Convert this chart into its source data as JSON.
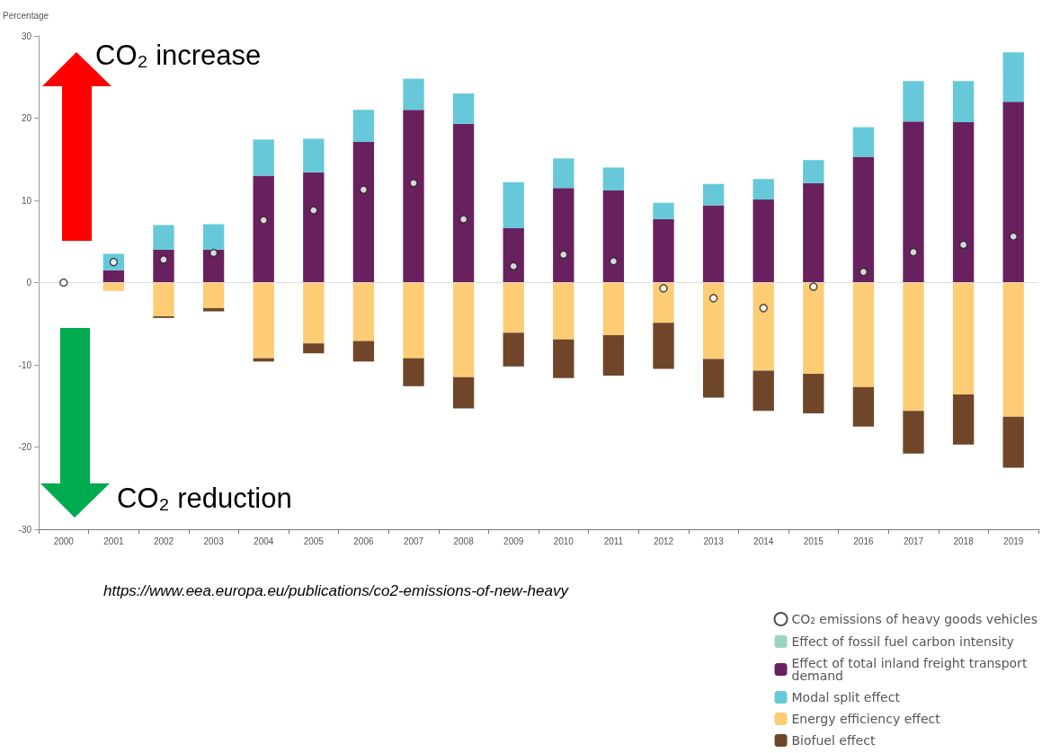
{
  "chart_data": {
    "type": "bar",
    "stacked": true,
    "ylabel": "Percentage",
    "categories": [
      "2000",
      "2001",
      "2002",
      "2003",
      "2004",
      "2005",
      "2006",
      "2007",
      "2008",
      "2009",
      "2010",
      "2011",
      "2012",
      "2013",
      "2014",
      "2015",
      "2016",
      "2017",
      "2018",
      "2019"
    ],
    "series": [
      {
        "name": "CO₂ emissions of heavy goods vehicles",
        "type": "scatter",
        "color": "#ffffff",
        "values": [
          0,
          2.5,
          2.8,
          3.6,
          7.6,
          8.8,
          11.3,
          12.1,
          7.7,
          2.0,
          3.4,
          2.6,
          -0.7,
          -1.9,
          -3.1,
          -0.5,
          1.3,
          3.7,
          4.6,
          5.6
        ]
      },
      {
        "name": "Effect of fossil fuel carbon intensity",
        "color": "#99d4c0",
        "values": [
          0,
          0,
          0,
          0,
          0,
          0,
          0,
          0,
          0,
          0,
          0,
          0,
          0,
          0,
          0,
          0,
          0,
          0,
          0,
          0
        ]
      },
      {
        "name": "Effect of total inland freight transport demand",
        "color": "#68215e",
        "values": [
          0,
          1.5,
          4.0,
          4.0,
          13.0,
          13.4,
          17.1,
          21.0,
          19.3,
          6.6,
          11.5,
          11.2,
          7.7,
          9.4,
          10.1,
          12.1,
          15.3,
          19.6,
          19.5,
          22.0
        ]
      },
      {
        "name": "Modal split effect",
        "color": "#66c8d8",
        "values": [
          0,
          2.0,
          3.0,
          3.1,
          4.4,
          4.1,
          3.9,
          3.8,
          3.7,
          5.6,
          3.6,
          2.8,
          2.0,
          2.6,
          2.5,
          2.8,
          3.6,
          4.9,
          5.0,
          6.0
        ]
      },
      {
        "name": "Energy efficiency effect",
        "color": "#fdcc75",
        "values": [
          0,
          -1.0,
          -4.1,
          -3.1,
          -9.2,
          -7.4,
          -7.1,
          -9.2,
          -11.5,
          -6.1,
          -6.9,
          -6.4,
          -4.9,
          -9.3,
          -10.7,
          -11.1,
          -12.7,
          -15.6,
          -13.6,
          -16.3
        ]
      },
      {
        "name": "Biofuel effect",
        "color": "#6f4629",
        "values": [
          0,
          0,
          -0.2,
          -0.4,
          -0.4,
          -1.2,
          -2.5,
          -3.4,
          -3.8,
          -4.1,
          -4.7,
          -4.9,
          -5.6,
          -4.7,
          -4.9,
          -4.8,
          -4.8,
          -5.2,
          -6.1,
          -6.2
        ]
      }
    ],
    "ylim": [
      -30,
      30
    ],
    "yticks": [
      -30,
      -20,
      -10,
      0,
      10,
      20,
      30
    ],
    "grid": false,
    "legend": "bottom right",
    "marker": "circle",
    "ref_lines": [
      {
        "axis": "y",
        "value": 0,
        "color": "#dddddd"
      }
    ],
    "annotations": [
      "CO₂ increase",
      "CO₂ reduction",
      "https://www.eea.europa.eu/publications/co2-emissions-of-new-heavy"
    ]
  }
}
